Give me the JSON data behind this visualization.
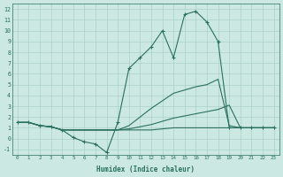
{
  "xlabel": "Humidex (Indice chaleur)",
  "xlim": [
    -0.5,
    23.5
  ],
  "ylim": [
    -1.5,
    12.5
  ],
  "xticks": [
    0,
    1,
    2,
    3,
    4,
    5,
    6,
    7,
    8,
    9,
    10,
    11,
    12,
    13,
    14,
    15,
    16,
    17,
    18,
    19,
    20,
    21,
    22,
    23
  ],
  "yticks": [
    -1,
    0,
    1,
    2,
    3,
    4,
    5,
    6,
    7,
    8,
    9,
    10,
    11,
    12
  ],
  "bg_color": "#cce8e2",
  "line_color": "#2a7060",
  "grid_color": "#aad0c8",
  "lines": [
    {
      "x": [
        0,
        1,
        2,
        3,
        4,
        5,
        6,
        7,
        8,
        9,
        10,
        11,
        12,
        13,
        14,
        15,
        16,
        17,
        18,
        19,
        20,
        21,
        22,
        23
      ],
      "y": [
        1.5,
        1.5,
        1.2,
        1.1,
        0.8,
        0.1,
        -0.3,
        -0.5,
        -1.3,
        1.5,
        6.5,
        7.5,
        8.5,
        10.0,
        7.5,
        11.5,
        11.8,
        10.8,
        9.0,
        1.0,
        1.0,
        1.0,
        1.0,
        1.0
      ],
      "marker": true
    },
    {
      "x": [
        0,
        1,
        2,
        3,
        4,
        5,
        6,
        7,
        8,
        9,
        10,
        11,
        12,
        13,
        14,
        15,
        16,
        17,
        18,
        19,
        20,
        21,
        22,
        23
      ],
      "y": [
        1.5,
        1.5,
        1.2,
        1.1,
        0.8,
        0.8,
        0.8,
        0.8,
        0.8,
        0.8,
        1.2,
        2.0,
        2.8,
        3.5,
        4.2,
        4.5,
        4.8,
        5.0,
        5.5,
        1.2,
        1.0,
        1.0,
        1.0,
        1.0
      ],
      "marker": false
    },
    {
      "x": [
        0,
        1,
        2,
        3,
        4,
        5,
        6,
        7,
        8,
        9,
        10,
        11,
        12,
        13,
        14,
        15,
        16,
        17,
        18,
        19,
        20,
        21,
        22,
        23
      ],
      "y": [
        1.5,
        1.5,
        1.2,
        1.1,
        0.8,
        0.8,
        0.8,
        0.8,
        0.8,
        0.8,
        0.9,
        1.1,
        1.3,
        1.6,
        1.9,
        2.1,
        2.3,
        2.5,
        2.7,
        3.1,
        1.0,
        1.0,
        1.0,
        1.0
      ],
      "marker": false
    },
    {
      "x": [
        0,
        1,
        2,
        3,
        4,
        5,
        6,
        7,
        8,
        9,
        10,
        11,
        12,
        13,
        14,
        15,
        16,
        17,
        18,
        19,
        20,
        21,
        22,
        23
      ],
      "y": [
        1.5,
        1.5,
        1.2,
        1.1,
        0.8,
        0.8,
        0.8,
        0.8,
        0.8,
        0.8,
        0.8,
        0.8,
        0.8,
        0.9,
        1.0,
        1.0,
        1.0,
        1.0,
        1.0,
        1.0,
        1.0,
        1.0,
        1.0,
        1.0
      ],
      "marker": false
    }
  ]
}
